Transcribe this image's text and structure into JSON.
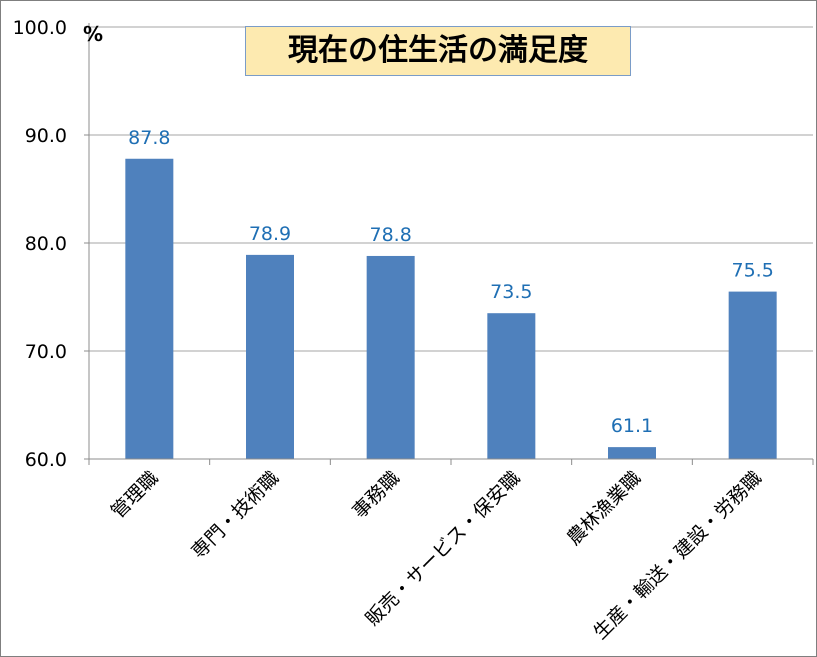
{
  "chart_data": {
    "type": "bar",
    "title": "現在の住生活の満足度",
    "unit_label": "%",
    "categories": [
      "管理職",
      "専門・技術職",
      "事務職",
      "販売・サービス・保安職",
      "農林漁業職",
      "生産・輸送・建設・労務職"
    ],
    "series": [
      {
        "values": [
          87.8,
          78.9,
          78.8,
          73.5,
          61.1,
          75.5
        ]
      }
    ],
    "ylim": [
      60.0,
      100.0
    ],
    "y_ticks": [
      "60.0",
      "70.0",
      "80.0",
      "90.0",
      "100.0"
    ],
    "data_labels": [
      "87.8",
      "78.9",
      "78.8",
      "73.5",
      "61.1",
      "75.5"
    ],
    "grid": true,
    "legend": "none"
  },
  "colors": {
    "bar": "#4f81bd",
    "data_label": "#1f6fb4",
    "title_background": "#fdeab0",
    "gridline": "#a6a6a6"
  }
}
